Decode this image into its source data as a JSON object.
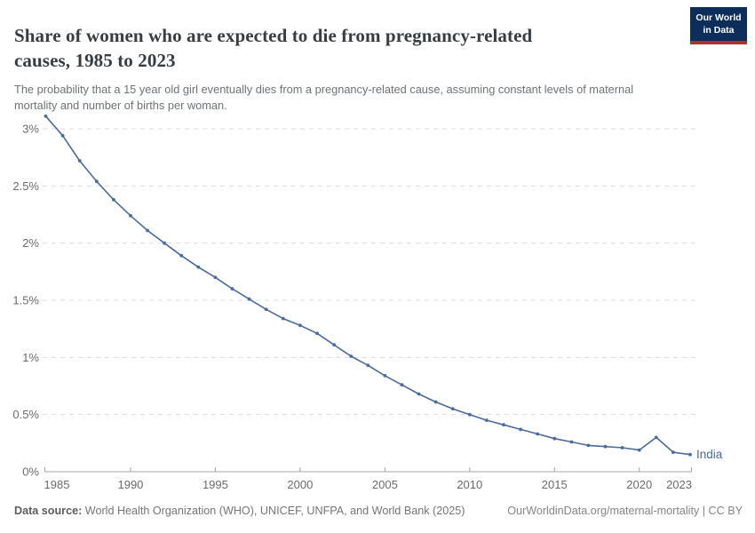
{
  "header": {
    "title": "Share of women who are expected to die from pregnancy-related causes, 1985 to 2023",
    "logo_line1": "Our World",
    "logo_line2": "in Data"
  },
  "subtitle": "The probability that a 15 year old girl eventually dies from a pregnancy-related cause, assuming constant levels of maternal mortality and number of births per woman.",
  "footer": {
    "datasource_label": "Data source:",
    "datasource_text": " World Health Organization (WHO), UNICEF, UNFPA, and World Bank (2025)",
    "link_text": "OurWorldinData.org/maternal-mortality | CC BY"
  },
  "colors": {
    "line": "#4c6a9c",
    "grid": "#dcdcdc",
    "axis": "#a5a5a5",
    "axis_label": "#6b6b6b",
    "logo_bg": "#0d2e5a",
    "logo_red": "#b0302c"
  },
  "chart_data": {
    "type": "line",
    "title": "Share of women who are expected to die from pregnancy-related causes, 1985 to 2023",
    "xlabel": "",
    "ylabel": "",
    "grid": true,
    "legend_position": "end-of-line",
    "xlim": [
      1985,
      2023
    ],
    "ylim": [
      0,
      3.2
    ],
    "x_ticks": [
      1985,
      1990,
      1995,
      2000,
      2005,
      2010,
      2015,
      2020,
      2023
    ],
    "y_ticks": [
      {
        "value": 0,
        "label": "0%"
      },
      {
        "value": 0.5,
        "label": "0.5%"
      },
      {
        "value": 1,
        "label": "1%"
      },
      {
        "value": 1.5,
        "label": "1.5%"
      },
      {
        "value": 2,
        "label": "2%"
      },
      {
        "value": 2.5,
        "label": "2.5%"
      },
      {
        "value": 3,
        "label": "3%"
      }
    ],
    "x": [
      1985,
      1986,
      1987,
      1988,
      1989,
      1990,
      1991,
      1992,
      1993,
      1994,
      1995,
      1996,
      1997,
      1998,
      1999,
      2000,
      2001,
      2002,
      2003,
      2004,
      2005,
      2006,
      2007,
      2008,
      2009,
      2010,
      2011,
      2012,
      2013,
      2014,
      2015,
      2016,
      2017,
      2018,
      2019,
      2020,
      2021,
      2022,
      2023
    ],
    "series": [
      {
        "name": "India",
        "color": "#4c6a9c",
        "values": [
          3.11,
          2.94,
          2.72,
          2.54,
          2.38,
          2.24,
          2.11,
          2.0,
          1.89,
          1.79,
          1.7,
          1.6,
          1.51,
          1.42,
          1.34,
          1.28,
          1.21,
          1.11,
          1.01,
          0.93,
          0.84,
          0.76,
          0.68,
          0.61,
          0.55,
          0.5,
          0.45,
          0.41,
          0.37,
          0.33,
          0.29,
          0.26,
          0.23,
          0.22,
          0.21,
          0.19,
          0.3,
          0.17,
          0.15
        ]
      }
    ]
  }
}
